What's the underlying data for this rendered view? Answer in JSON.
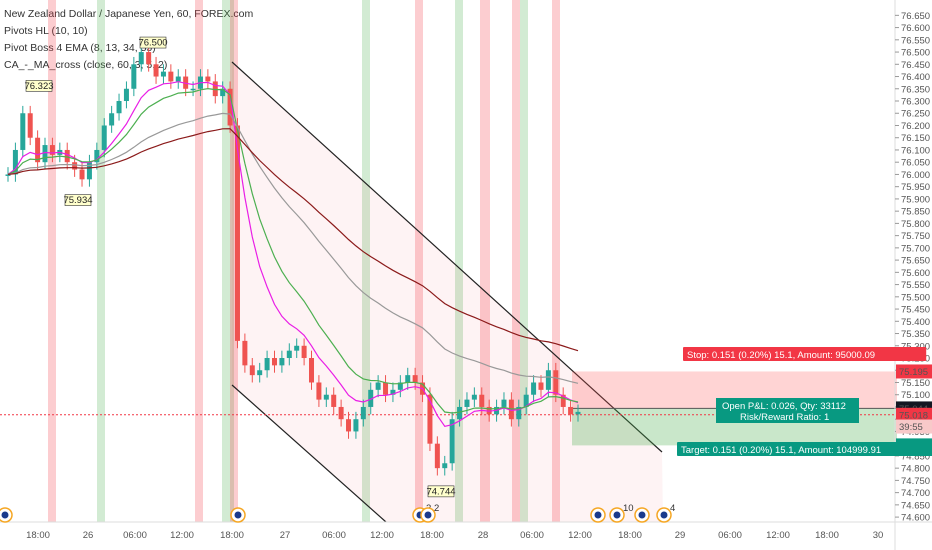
{
  "chart_title": "New Zealand Dollar / Japanese Yen, 60, FOREX.com",
  "indicators": [
    "Pivots HL (10, 10)",
    "Pivot Boss 4 EMA (8, 13, 34, 55)",
    "CA_-_MA_cross (close, 60, 3, 5, 2)"
  ],
  "position_box": {
    "stop_label": "Stop: 0.151 (0.20%) 15.1, Amount: 95000.09",
    "pnl_label": "Open P&L: 0.026, Qty: 33112",
    "rr_label": "Risk/Reward Ratio: 1",
    "target_label": "Target: 0.151 (0.20%) 15.1, Amount: 104999.91"
  },
  "price_axis": {
    "ticks": [
      "76.650",
      "76.600",
      "76.550",
      "76.500",
      "76.450",
      "76.400",
      "76.350",
      "76.300",
      "76.250",
      "76.200",
      "76.150",
      "76.100",
      "76.050",
      "76.000",
      "75.950",
      "75.900",
      "75.850",
      "75.800",
      "75.750",
      "75.700",
      "75.650",
      "75.600",
      "75.550",
      "75.500",
      "75.450",
      "75.400",
      "75.350",
      "75.300",
      "75.250",
      "75.200",
      "75.150",
      "75.100",
      "75.050",
      "75.000",
      "74.950",
      "74.900",
      "74.850",
      "74.800",
      "74.750",
      "74.700",
      "74.650",
      "74.600"
    ],
    "tags": [
      {
        "text": "75.195",
        "color": "#f23645",
        "value": 75.195
      },
      {
        "text": "75.044",
        "color": "#131722",
        "value": 75.044
      },
      {
        "text": "75.018",
        "color": "#f23645",
        "value": 75.018
      },
      {
        "text": "39:55",
        "color": "#f8c9c9",
        "value": 74.97,
        "textColor": "#f23645"
      },
      {
        "text": "74.893",
        "color": "#089981",
        "value": 74.893
      }
    ]
  },
  "time_axis": [
    "18:00",
    "26",
    "06:00",
    "12:00",
    "18:00",
    "27",
    "06:00",
    "12:00",
    "18:00",
    "28",
    "06:00",
    "12:00",
    "18:00",
    "29",
    "06:00",
    "12:00",
    "18:00",
    "30"
  ],
  "event_badges": [
    "2",
    "2",
    "10",
    "4"
  ],
  "colors": {
    "up": "#26a69a",
    "down": "#ef5350",
    "ema8": "#e91ee6",
    "ema13": "#4caf50",
    "ema34": "#999999",
    "ema55": "#8b1a1a",
    "stop": "#ff5252",
    "target": "#4caf50"
  },
  "chart_data": {
    "type": "candlestick",
    "title": "New Zealand Dollar / Japanese Yen, 60, FOREX.com",
    "ylim": [
      74.58,
      76.68
    ],
    "pivots": [
      {
        "label": "76.323",
        "price": 76.323
      },
      {
        "label": "76.500",
        "price": 76.5
      },
      {
        "label": "75.934",
        "price": 75.934
      },
      {
        "label": "74.744",
        "price": 74.744
      }
    ],
    "position": {
      "stop": 75.195,
      "entry": 75.044,
      "target": 74.893,
      "ratio": 1
    },
    "series": [
      {
        "name": "close",
        "values": [
          76.0,
          76.1,
          76.25,
          76.15,
          76.05,
          76.12,
          76.08,
          76.1,
          76.05,
          76.02,
          75.98,
          76.05,
          76.1,
          76.2,
          76.25,
          76.3,
          76.35,
          76.45,
          76.5,
          76.45,
          76.4,
          76.42,
          76.38,
          76.4,
          76.35,
          76.35,
          76.4,
          76.38,
          76.32,
          76.35,
          76.2,
          75.32,
          75.22,
          75.18,
          75.2,
          75.25,
          75.22,
          75.25,
          75.28,
          75.3,
          75.25,
          75.15,
          75.08,
          75.1,
          75.05,
          75.0,
          74.95,
          75.0,
          75.05,
          75.12,
          75.15,
          75.1,
          75.12,
          75.15,
          75.18,
          75.15,
          75.1,
          74.9,
          74.8,
          74.82,
          75.0,
          75.05,
          75.08,
          75.1,
          75.05,
          75.02,
          75.05,
          75.08,
          75.0,
          75.05,
          75.1,
          75.15,
          75.12,
          75.2,
          75.1,
          75.05,
          75.02,
          75.03
        ]
      }
    ]
  }
}
